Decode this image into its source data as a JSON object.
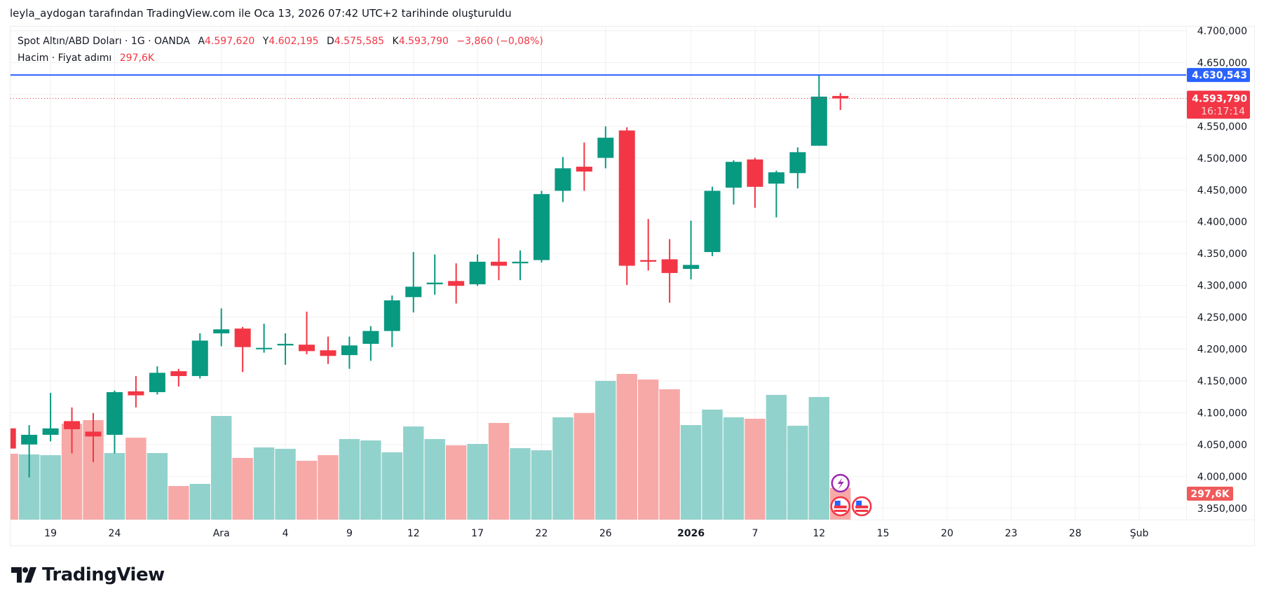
{
  "caption": "leyla_aydogan tarafından TradingView.com ile Oca 13, 2026 07:42 UTC+2 tarihinde oluşturuldu",
  "legend": {
    "symbol": "Spot Altın/ABD Doları · 1G · OANDA",
    "open_label": "A",
    "open": "4.597,620",
    "high_label": "Y",
    "high": "4.602,195",
    "low_label": "D",
    "low": "4.575,585",
    "close_label": "K",
    "close": "4.593,790",
    "change": "−3,860 (−0,08%)",
    "volume_label": "Hacim · Fiyat adımı",
    "volume_value": "297,6K"
  },
  "price_axis": {
    "high_line_label": "4.630,543",
    "last_price_label": "4.593,790",
    "countdown": "16:17:14",
    "volume_label": "297,6K"
  },
  "logo": {
    "text": "TradingView",
    "icon": "tradingview-logo-icon"
  },
  "events": [
    {
      "icon": "lightning-icon",
      "color": "#9c27b0"
    },
    {
      "icon": "us-flag-icon",
      "color": "#f23645"
    },
    {
      "icon": "us-flag-icon",
      "color": "#f23645"
    }
  ],
  "colors": {
    "up": "#089981",
    "down": "#f23645",
    "up_volume": "#92d2cc",
    "down_volume": "#f7a9a7",
    "high_line": "#2962ff",
    "grid": "#f0f3fa"
  },
  "chart_data": {
    "type": "candlestick",
    "title": "Spot Altın/ABD Doları · 1G · OANDA",
    "ylim": [
      3937,
      4712
    ],
    "y_ticks": [
      4700,
      4650,
      4600,
      4550,
      4500,
      4450,
      4400,
      4350,
      4300,
      4250,
      4200,
      4150,
      4100,
      4050,
      4000,
      3950
    ],
    "y_tick_labels": [
      "4.700,000",
      "4.650,000",
      "4.600,000",
      "4.550,000",
      "4.500,000",
      "4.450,000",
      "4.400,000",
      "4.350,000",
      "4.300,000",
      "4.250,000",
      "4.200,000",
      "4.150,000",
      "4.100,000",
      "4.050,000",
      "4.000,000",
      "3.950,000"
    ],
    "x_tick_labels": [
      {
        "label": "19",
        "index": 2
      },
      {
        "label": "24",
        "index": 5
      },
      {
        "label": "Ara",
        "index": 10
      },
      {
        "label": "4",
        "index": 13
      },
      {
        "label": "9",
        "index": 16
      },
      {
        "label": "12",
        "index": 19
      },
      {
        "label": "17",
        "index": 22
      },
      {
        "label": "22",
        "index": 25
      },
      {
        "label": "26",
        "index": 28
      },
      {
        "label": "2026",
        "index": 32
      },
      {
        "label": "7",
        "index": 35
      },
      {
        "label": "12",
        "index": 38
      },
      {
        "label": "15",
        "index": 41
      },
      {
        "label": "20",
        "index": 44
      },
      {
        "label": "23",
        "index": 47
      },
      {
        "label": "28",
        "index": 50
      },
      {
        "label": "Şub",
        "index": 53
      }
    ],
    "high_line": 4630.543,
    "last_price": 4593.79,
    "candles": [
      {
        "o": 4075.4,
        "h": 4080.5,
        "l": 4043.7,
        "c": 4043.7,
        "v": 621
      },
      {
        "o": 4050.1,
        "h": 4080.5,
        "l": 3998.2,
        "c": 4065.3,
        "v": 615
      },
      {
        "o": 4065.3,
        "h": 4131.1,
        "l": 4055.1,
        "c": 4075.4,
        "v": 608
      },
      {
        "o": 4086.8,
        "h": 4108.3,
        "l": 4036.1,
        "c": 4074.1,
        "v": 906
      },
      {
        "o": 4070.3,
        "h": 4099.4,
        "l": 4022.3,
        "c": 4062.7,
        "v": 939
      },
      {
        "o": 4065.3,
        "h": 4134.8,
        "l": 4036.1,
        "c": 4132.3,
        "v": 628
      },
      {
        "o": 4133.6,
        "h": 4157.6,
        "l": 4108.3,
        "c": 4127.3,
        "v": 773
      },
      {
        "o": 4132.3,
        "h": 4172.8,
        "l": 4128.5,
        "c": 4162.7,
        "v": 628
      },
      {
        "o": 4165.2,
        "h": 4169.0,
        "l": 4141.2,
        "c": 4157.6,
        "v": 317
      },
      {
        "o": 4157.6,
        "h": 4224.7,
        "l": 4153.8,
        "c": 4213.3,
        "v": 337
      },
      {
        "o": 4224.7,
        "h": 4263.9,
        "l": 4204.4,
        "c": 4231.0,
        "v": 978
      },
      {
        "o": 4232.2,
        "h": 4234.8,
        "l": 4163.9,
        "c": 4203.1,
        "v": 582
      },
      {
        "o": 4200.6,
        "h": 4239.8,
        "l": 4194.3,
        "c": 4201.9,
        "v": 681
      },
      {
        "o": 4205.7,
        "h": 4224.7,
        "l": 4175.3,
        "c": 4208.2,
        "v": 668
      },
      {
        "o": 4206.9,
        "h": 4258.8,
        "l": 4191.8,
        "c": 4196.8,
        "v": 555
      },
      {
        "o": 4198.1,
        "h": 4219.6,
        "l": 4176.6,
        "c": 4189.2,
        "v": 608
      },
      {
        "o": 4190.5,
        "h": 4219.6,
        "l": 4169.0,
        "c": 4205.7,
        "v": 760
      },
      {
        "o": 4208.2,
        "h": 4236.0,
        "l": 4181.6,
        "c": 4228.4,
        "v": 747
      },
      {
        "o": 4228.4,
        "h": 4284.1,
        "l": 4203.1,
        "c": 4276.5,
        "v": 635
      },
      {
        "o": 4281.6,
        "h": 4352.4,
        "l": 4257.5,
        "c": 4298.0,
        "v": 879
      },
      {
        "o": 4301.8,
        "h": 4348.6,
        "l": 4285.4,
        "c": 4304.4,
        "v": 760
      },
      {
        "o": 4306.9,
        "h": 4334.7,
        "l": 4271.5,
        "c": 4299.3,
        "v": 701
      },
      {
        "o": 4301.8,
        "h": 4348.6,
        "l": 4299.3,
        "c": 4337.2,
        "v": 714
      },
      {
        "o": 4337.2,
        "h": 4373.9,
        "l": 4308.2,
        "c": 4330.9,
        "v": 912
      },
      {
        "o": 4334.7,
        "h": 4355.0,
        "l": 4308.2,
        "c": 4337.2,
        "v": 674
      },
      {
        "o": 4339.8,
        "h": 4448.6,
        "l": 4336.0,
        "c": 4443.5,
        "v": 654
      },
      {
        "o": 4448.6,
        "h": 4501.7,
        "l": 4430.9,
        "c": 4484.0,
        "v": 965
      },
      {
        "o": 4486.5,
        "h": 4524.5,
        "l": 4448.6,
        "c": 4478.9,
        "v": 1005
      },
      {
        "o": 4500.4,
        "h": 4549.8,
        "l": 4484.0,
        "c": 4532.1,
        "v": 1309
      },
      {
        "o": 4543.4,
        "h": 4548.5,
        "l": 4300.6,
        "c": 4330.9,
        "v": 1375
      },
      {
        "o": 4339.8,
        "h": 4404.3,
        "l": 4323.3,
        "c": 4337.2,
        "v": 1322
      },
      {
        "o": 4341.0,
        "h": 4372.7,
        "l": 4272.7,
        "c": 4319.5,
        "v": 1230
      },
      {
        "o": 4325.9,
        "h": 4401.8,
        "l": 4309.4,
        "c": 4332.2,
        "v": 892
      },
      {
        "o": 4352.4,
        "h": 4454.9,
        "l": 4346.1,
        "c": 4448.6,
        "v": 1038
      },
      {
        "o": 4453.6,
        "h": 4496.6,
        "l": 4427.1,
        "c": 4494.1,
        "v": 965
      },
      {
        "o": 4497.9,
        "h": 4500.4,
        "l": 4422.0,
        "c": 4454.9,
        "v": 952
      },
      {
        "o": 4459.9,
        "h": 4480.2,
        "l": 4406.8,
        "c": 4477.7,
        "v": 1177
      },
      {
        "o": 4476.4,
        "h": 4516.9,
        "l": 4452.4,
        "c": 4509.3,
        "v": 886
      },
      {
        "o": 4519.4,
        "h": 4630.5,
        "l": 4519.4,
        "c": 4596.6,
        "v": 1157
      },
      {
        "o": 4597.62,
        "h": 4602.195,
        "l": 4575.585,
        "c": 4593.79,
        "v": 297.6
      }
    ]
  }
}
